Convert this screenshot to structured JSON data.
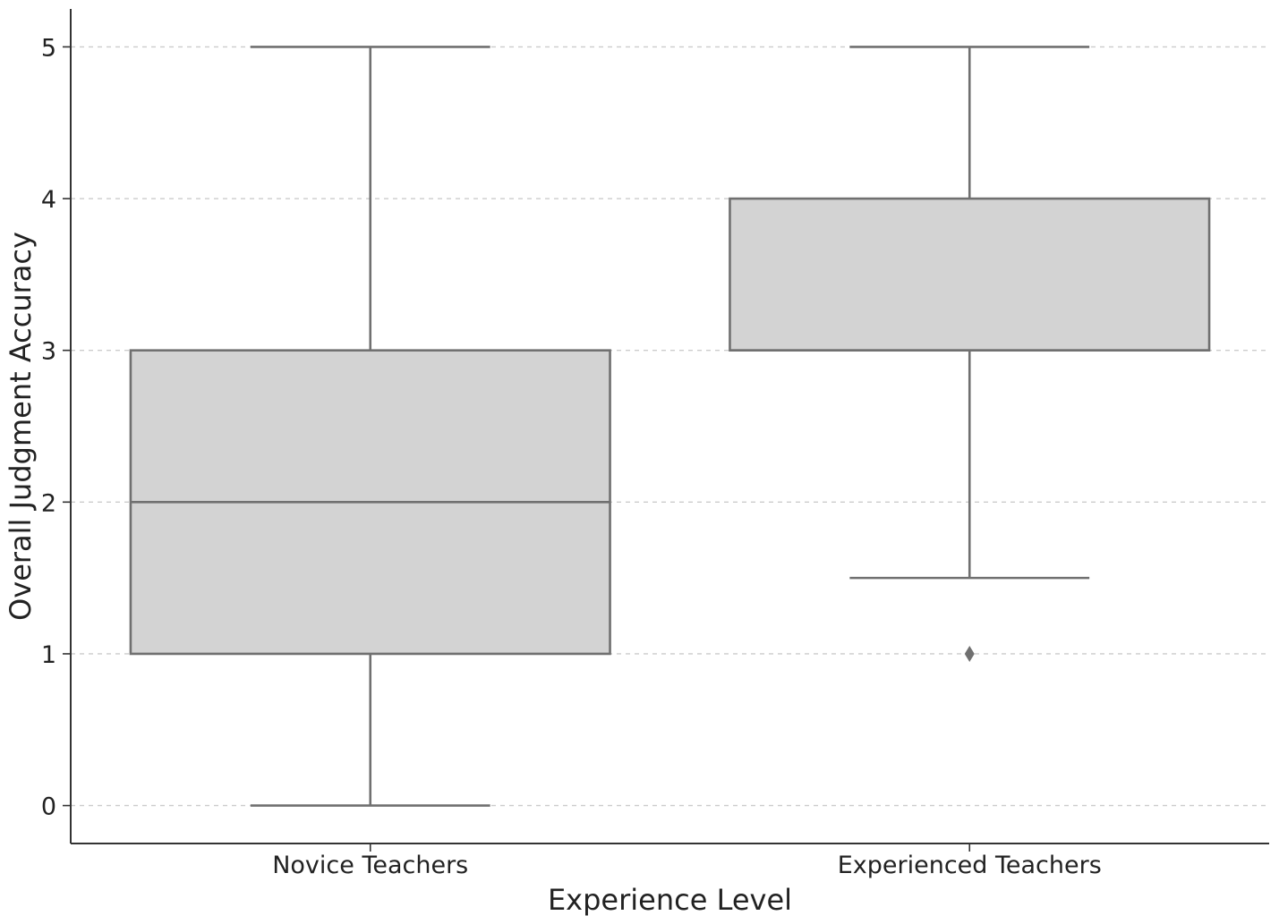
{
  "chart_data": {
    "type": "box",
    "title": "",
    "xlabel": "Experience Level",
    "ylabel": "Overall Judgment Accuracy",
    "ylim": [
      -0.25,
      5.25
    ],
    "yticks": [
      0,
      1,
      2,
      3,
      4,
      5
    ],
    "grid": "horizontal dashed",
    "categories": [
      "Novice Teachers",
      "Experienced Teachers"
    ],
    "boxes": [
      {
        "category": "Novice Teachers",
        "whisker_low": 0,
        "q1": 1,
        "median": 2,
        "q3": 3,
        "whisker_high": 5,
        "outliers": []
      },
      {
        "category": "Experienced Teachers",
        "whisker_low": 1.5,
        "q1": 3,
        "median": 3,
        "q3": 4,
        "whisker_high": 5,
        "outliers": [
          1
        ]
      }
    ],
    "colors": {
      "box_fill": "#d3d3d3",
      "box_edge": "#707070",
      "grid": "#cccccc",
      "axis": "#333333"
    }
  }
}
